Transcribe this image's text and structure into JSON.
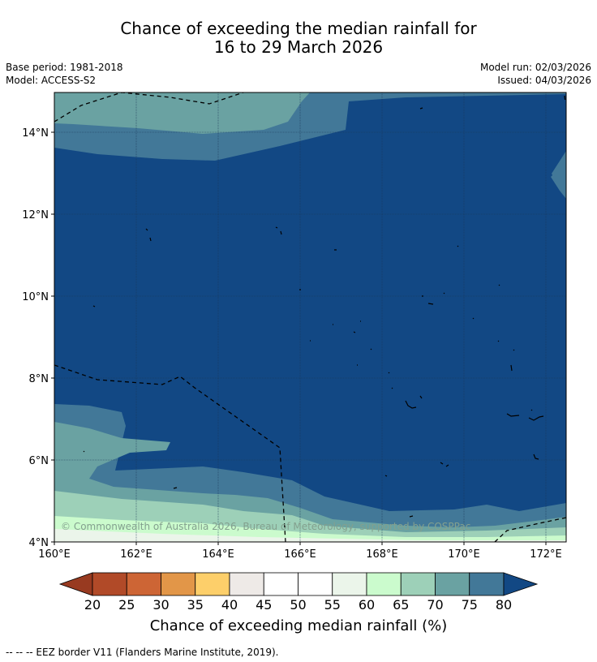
{
  "title": {
    "line1": "Chance of exceeding the median rainfall for",
    "line2": "16 to 29 March 2026"
  },
  "meta": {
    "base_period": "Base period: 1981-2018",
    "model": "Model: ACCESS-S2",
    "model_run": "Model run: 02/03/2026",
    "issued": "Issued: 04/03/2026"
  },
  "map": {
    "lat_labels": [
      "14°N",
      "12°N",
      "10°N",
      "8°N",
      "6°N",
      "4°N"
    ],
    "lon_labels": [
      "160°E",
      "162°E",
      "164°E",
      "166°E",
      "168°E",
      "170°E",
      "172°E"
    ],
    "copyright": "© Commonwealth of Australia 2026, Bureau of Meteorology, supported by COSPPac"
  },
  "colorbar": {
    "title": "Chance of exceeding median rainfall (%)",
    "ticks": [
      "20",
      "25",
      "30",
      "35",
      "40",
      "45",
      "50",
      "55",
      "60",
      "65",
      "70",
      "75",
      "80"
    ],
    "colors": {
      "below_20": "#983a20",
      "c20_25": "#b14a28",
      "c25_30": "#cd6535",
      "c30_35": "#e29648",
      "c35_40": "#fdcf6a",
      "c40_45": "#eeeae7",
      "c45_50": "#ffffff",
      "c50_55": "#ffffff",
      "c55_60": "#ebf5ea",
      "c60_65": "#cbfbcd",
      "c65_70": "#9dd0b8",
      "c70_75": "#6aa2a2",
      "c75_80": "#427898",
      "above_80": "#124884"
    }
  },
  "footnote": "--  --  -- EEZ border V11 (Flanders Marine Institute, 2019)."
}
